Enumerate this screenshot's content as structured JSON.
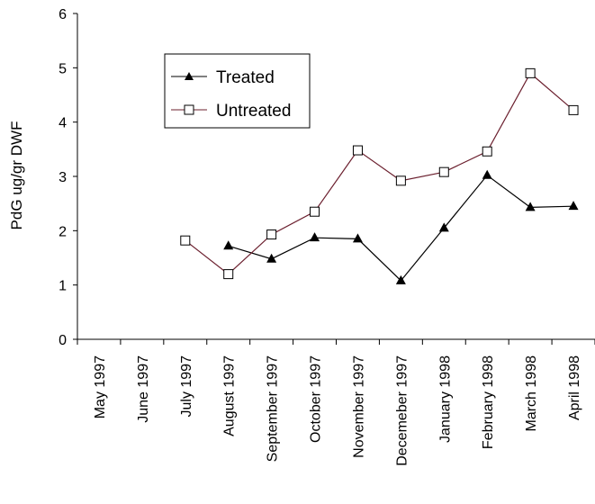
{
  "chart_data": {
    "type": "line",
    "ylabel": "PdG ug/gr DWF",
    "xlabel": "",
    "ylim": [
      0,
      6
    ],
    "yticks": [
      "0",
      "1",
      "2",
      "3",
      "4",
      "5",
      "6"
    ],
    "categories": [
      "May 1997",
      "June 1997",
      "July 1997",
      "August 1997",
      "September 1997",
      "October 1997",
      "November 1997",
      "Decemeber 1997",
      "January 1998",
      "February 1998",
      "March 1998",
      "April 1998"
    ],
    "series": [
      {
        "name": "Treated",
        "marker": "filled-triangle",
        "color": "#000000",
        "values": [
          null,
          null,
          null,
          1.72,
          1.48,
          1.87,
          1.85,
          1.08,
          2.05,
          3.02,
          2.43,
          2.45
        ]
      },
      {
        "name": "Untreated",
        "marker": "open-square",
        "color": "#6b1f2e",
        "values": [
          null,
          null,
          1.82,
          1.2,
          1.93,
          2.35,
          3.48,
          2.92,
          3.08,
          3.46,
          4.9,
          4.22
        ]
      }
    ],
    "legend": {
      "position": "upper-left"
    },
    "grid": false
  }
}
